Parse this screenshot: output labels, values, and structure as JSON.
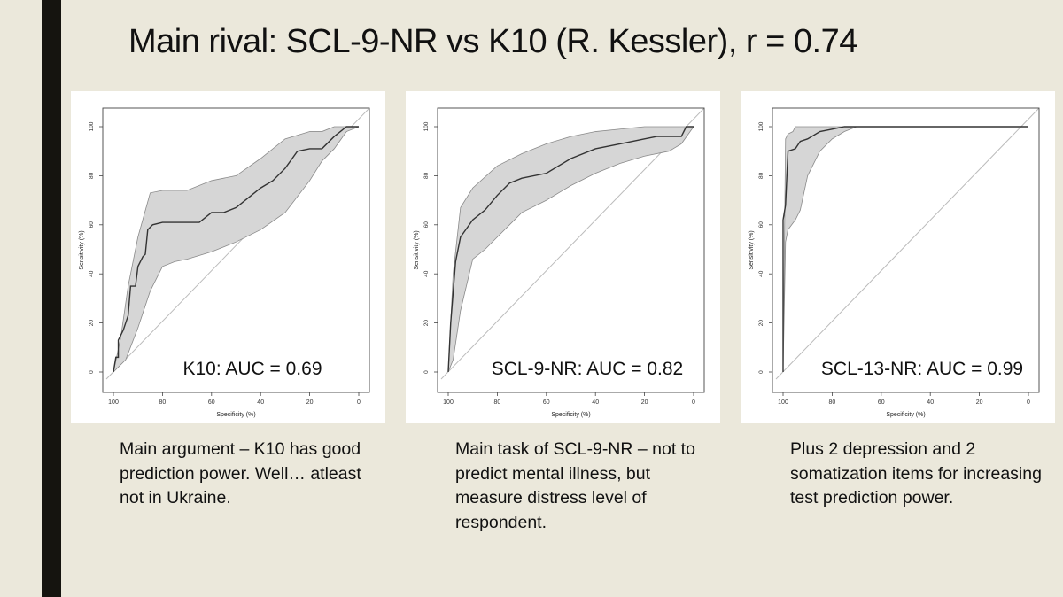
{
  "slide": {
    "title": "Main rival: SCL-9-NR vs K10 (R. Kessler), r = 0.74"
  },
  "colors": {
    "background": "#ebe8db",
    "left_bar": "#15140f",
    "ci_band": "#d6d6d6",
    "roc_line": "#333333",
    "diagonal": "#bbbbbb"
  },
  "captions": [
    "Main argument – K10 has good prediction power. Well… atleast not in Ukraine.",
    "Main task of SCL-9-NR – not to predict mental illness, but measure distress level of respondent.",
    "Plus 2 depression and 2 somatization items for increasing test prediction power."
  ],
  "chart_data": [
    {
      "type": "line",
      "title": "K10: AUC = 0.69",
      "xlabel": "Specificity (%)",
      "ylabel": "Sensitivity (%)",
      "xlim": [
        100,
        0
      ],
      "ylim": [
        0,
        100
      ],
      "x_ticks": [
        "100",
        "80",
        "60",
        "40",
        "20",
        "0"
      ],
      "y_ticks": [
        "0",
        "20",
        "40",
        "60",
        "80",
        "100"
      ],
      "series": [
        {
          "name": "ROC",
          "x": [
            100,
            99,
            98,
            98,
            96,
            94,
            93,
            91,
            90,
            88,
            87,
            86,
            84,
            80,
            75,
            70,
            65,
            60,
            55,
            50,
            45,
            40,
            35,
            30,
            25,
            20,
            15,
            10,
            5,
            0
          ],
          "y": [
            0,
            6,
            6,
            13,
            17,
            23,
            35,
            35,
            43,
            47,
            48,
            58,
            60,
            61,
            61,
            61,
            61,
            65,
            65,
            67,
            71,
            75,
            78,
            83,
            90,
            91,
            91,
            96,
            100,
            100
          ]
        },
        {
          "name": "CI upper",
          "x": [
            100,
            97,
            94,
            90,
            85,
            80,
            70,
            60,
            50,
            40,
            30,
            20,
            15,
            10,
            5,
            0
          ],
          "y": [
            0,
            14,
            35,
            55,
            73,
            74,
            74,
            78,
            80,
            87,
            95,
            98,
            98,
            100,
            100,
            100
          ]
        },
        {
          "name": "CI lower",
          "x": [
            100,
            95,
            90,
            85,
            80,
            75,
            70,
            60,
            50,
            40,
            30,
            20,
            15,
            10,
            5,
            0
          ],
          "y": [
            0,
            5,
            18,
            33,
            43,
            45,
            46,
            49,
            53,
            58,
            65,
            78,
            86,
            91,
            98,
            100
          ]
        }
      ]
    },
    {
      "type": "line",
      "title": "SCL-9-NR: AUC = 0.82",
      "xlabel": "Specificity (%)",
      "ylabel": "Sensitivity (%)",
      "xlim": [
        100,
        0
      ],
      "ylim": [
        0,
        100
      ],
      "x_ticks": [
        "100",
        "80",
        "60",
        "40",
        "20",
        "0"
      ],
      "y_ticks": [
        "0",
        "20",
        "40",
        "60",
        "80",
        "100"
      ],
      "series": [
        {
          "name": "ROC",
          "x": [
            100,
            99,
            97,
            95,
            90,
            85,
            80,
            75,
            70,
            60,
            50,
            40,
            30,
            20,
            15,
            10,
            5,
            3,
            0
          ],
          "y": [
            0,
            20,
            45,
            55,
            62,
            66,
            72,
            77,
            79,
            81,
            87,
            91,
            93,
            95,
            96,
            96,
            96,
            100,
            100
          ]
        },
        {
          "name": "CI upper",
          "x": [
            100,
            98,
            95,
            90,
            80,
            70,
            60,
            50,
            40,
            30,
            20,
            10,
            5,
            0
          ],
          "y": [
            0,
            40,
            67,
            75,
            84,
            89,
            93,
            96,
            98,
            99,
            100,
            100,
            100,
            100
          ]
        },
        {
          "name": "CI lower",
          "x": [
            100,
            98,
            95,
            90,
            85,
            80,
            70,
            60,
            50,
            40,
            30,
            20,
            10,
            5,
            0
          ],
          "y": [
            0,
            5,
            25,
            46,
            50,
            55,
            65,
            70,
            76,
            81,
            85,
            88,
            90,
            93,
            100
          ]
        }
      ]
    },
    {
      "type": "line",
      "title": "SCL-13-NR: AUC = 0.99",
      "xlabel": "Specificity (%)",
      "ylabel": "Sensitivity (%)",
      "xlim": [
        100,
        0
      ],
      "ylim": [
        0,
        100
      ],
      "x_ticks": [
        "100",
        "80",
        "60",
        "40",
        "20",
        "0"
      ],
      "y_ticks": [
        "0",
        "20",
        "40",
        "60",
        "80",
        "100"
      ],
      "series": [
        {
          "name": "ROC",
          "x": [
            100,
            100,
            99,
            98,
            95,
            93,
            90,
            85,
            80,
            75,
            70,
            0
          ],
          "y": [
            0,
            62,
            68,
            90,
            91,
            94,
            95,
            98,
            99,
            100,
            100,
            100
          ]
        },
        {
          "name": "CI upper",
          "x": [
            100,
            99,
            98,
            96,
            95,
            90,
            85,
            0
          ],
          "y": [
            0,
            95,
            97,
            98,
            100,
            100,
            100,
            100
          ]
        },
        {
          "name": "CI lower",
          "x": [
            100,
            99,
            98,
            95,
            93,
            90,
            85,
            80,
            75,
            70,
            0
          ],
          "y": [
            0,
            53,
            58,
            62,
            66,
            80,
            90,
            95,
            98,
            100,
            100
          ]
        }
      ]
    }
  ]
}
